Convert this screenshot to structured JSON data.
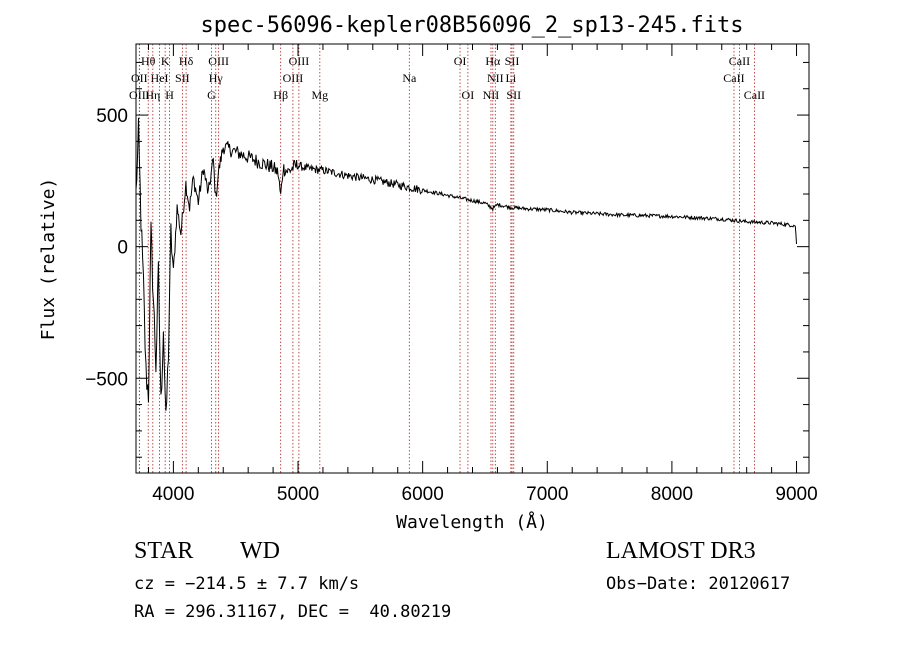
{
  "chart_data": {
    "type": "line",
    "title": "spec-56096-kepler08B56096_2_sp13-245.fits",
    "xlabel": "Wavelength (Å)",
    "ylabel": "Flux (relative)",
    "xlim": [
      3700,
      9100
    ],
    "ylim": [
      -860,
      770
    ],
    "xticks": [
      4000,
      5000,
      6000,
      7000,
      8000,
      9000
    ],
    "xtick_labels": [
      "4000",
      "5000",
      "6000",
      "7000",
      "8000",
      "9000"
    ],
    "yticks": [
      -500,
      0,
      500
    ],
    "ytick_labels": [
      "−500",
      "0",
      "500"
    ],
    "grid": false,
    "series": [
      {
        "name": "spectrum",
        "x": [
          3700,
          3720,
          3740,
          3760,
          3780,
          3800,
          3820,
          3840,
          3860,
          3880,
          3900,
          3920,
          3940,
          3960,
          3980,
          4000,
          4030,
          4060,
          4100,
          4130,
          4160,
          4200,
          4240,
          4280,
          4320,
          4340,
          4360,
          4400,
          4450,
          4500,
          4550,
          4600,
          4650,
          4700,
          4750,
          4800,
          4840,
          4861,
          4880,
          4920,
          4960,
          5000,
          5050,
          5100,
          5200,
          5300,
          5400,
          5500,
          5600,
          5700,
          5800,
          5900,
          6000,
          6100,
          6200,
          6300,
          6400,
          6500,
          6563,
          6600,
          6700,
          6800,
          7000,
          7200,
          7400,
          7600,
          7800,
          8000,
          8200,
          8400,
          8600,
          8800,
          8900,
          8990,
          9000
        ],
        "values": [
          200,
          430,
          100,
          -150,
          -480,
          -560,
          50,
          -200,
          -450,
          -100,
          -600,
          -300,
          -680,
          -400,
          50,
          -100,
          150,
          50,
          240,
          150,
          260,
          170,
          300,
          200,
          330,
          180,
          280,
          380,
          370,
          360,
          350,
          340,
          330,
          320,
          310,
          300,
          280,
          190,
          300,
          285,
          300,
          310,
          300,
          295,
          290,
          280,
          270,
          262,
          255,
          245,
          235,
          225,
          215,
          205,
          195,
          185,
          175,
          165,
          145,
          160,
          150,
          145,
          140,
          130,
          125,
          120,
          118,
          115,
          110,
          105,
          95,
          90,
          85,
          80,
          10
        ]
      }
    ],
    "lines": [
      {
        "label": "Hθ",
        "wavelength": 3798,
        "row": 1
      },
      {
        "label": "K",
        "wavelength": 3934,
        "row": 1
      },
      {
        "label": "Hδ",
        "wavelength": 4102,
        "row": 1
      },
      {
        "label": "OIII",
        "wavelength": 4363,
        "row": 1
      },
      {
        "label": "OIII",
        "wavelength": 5007,
        "row": 1
      },
      {
        "label": "OI",
        "wavelength": 6300,
        "row": 1
      },
      {
        "label": "Hα",
        "wavelength": 6563,
        "row": 1
      },
      {
        "label": "SII",
        "wavelength": 6717,
        "row": 1
      },
      {
        "label": "CaII",
        "wavelength": 8542,
        "row": 1
      },
      {
        "label": "OII",
        "wavelength": 3727,
        "row": 2
      },
      {
        "label": "HeI",
        "wavelength": 3889,
        "row": 2
      },
      {
        "label": "SII",
        "wavelength": 4072,
        "row": 2
      },
      {
        "label": "Hγ",
        "wavelength": 4340,
        "row": 2
      },
      {
        "label": "OIII",
        "wavelength": 4959,
        "row": 2
      },
      {
        "label": "Na",
        "wavelength": 5893,
        "row": 2
      },
      {
        "label": "NII",
        "wavelength": 6583,
        "row": 2
      },
      {
        "label": "Li",
        "wavelength": 6708,
        "row": 2
      },
      {
        "label": "CaII",
        "wavelength": 8498,
        "row": 2
      },
      {
        "label": "OIII",
        "wavelength": 3727,
        "row": 3
      },
      {
        "label": "Hη",
        "wavelength": 3835,
        "row": 3
      },
      {
        "label": "H",
        "wavelength": 3969,
        "row": 3
      },
      {
        "label": "G",
        "wavelength": 4305,
        "row": 3
      },
      {
        "label": "Hβ",
        "wavelength": 4861,
        "row": 3
      },
      {
        "label": "Mg",
        "wavelength": 5175,
        "row": 3
      },
      {
        "label": "OI",
        "wavelength": 6363,
        "row": 3
      },
      {
        "label": "NII",
        "wavelength": 6548,
        "row": 3
      },
      {
        "label": "SII",
        "wavelength": 6731,
        "row": 3
      },
      {
        "label": "CaII",
        "wavelength": 8662,
        "row": 3
      }
    ],
    "colors": {
      "spectrum": "#000000",
      "lines": "#b22222",
      "axes": "#000000"
    }
  },
  "info": {
    "class_label": "STAR",
    "subclass": "WD",
    "survey": "LAMOST DR3",
    "cz": "cz = −214.5 ± 7.7 km/s",
    "obs_date": "Obs−Date: 20120617",
    "radec": "RA = 296.31167, DEC =  40.80219"
  }
}
